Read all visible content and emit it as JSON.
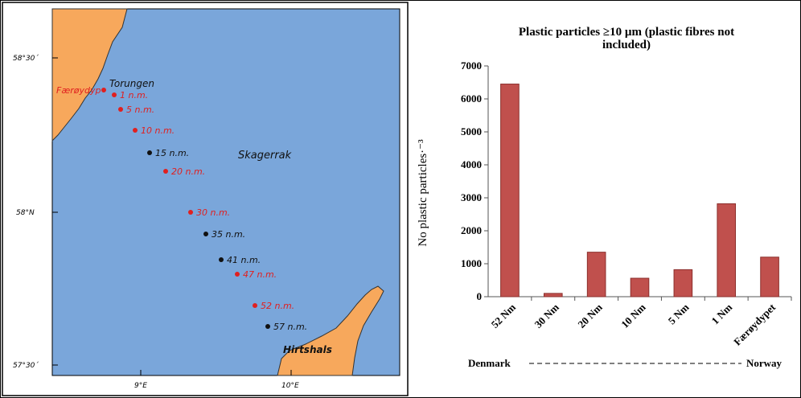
{
  "map": {
    "lat_labels": [
      "58°30´",
      "58°N",
      "57°30´"
    ],
    "lon_labels": [
      "9°E",
      "10°E"
    ],
    "place_labels": {
      "faroydyp": "Færøydyp",
      "torungen": "Torungen",
      "skagerrak": "Skagerrak",
      "hirtshals": "Hirtshals"
    },
    "stations": [
      {
        "label": "1 n.m.",
        "color": "#e02020"
      },
      {
        "label": "5 n.m.",
        "color": "#e02020"
      },
      {
        "label": "10 n.m.",
        "color": "#e02020"
      },
      {
        "label": "15 n.m.",
        "color": "#111111"
      },
      {
        "label": "20 n.m.",
        "color": "#e02020"
      },
      {
        "label": "30 n.m.",
        "color": "#e02020"
      },
      {
        "label": "35 n.m.",
        "color": "#111111"
      },
      {
        "label": "41 n.m.",
        "color": "#111111"
      },
      {
        "label": "47 n.m.",
        "color": "#e02020"
      },
      {
        "label": "52 n.m.",
        "color": "#e02020"
      },
      {
        "label": "57 n.m.",
        "color": "#111111"
      }
    ],
    "colors": {
      "sea": "#7aa6da",
      "land": "#f7a85c",
      "red_label": "#e02020"
    }
  },
  "chart_data": {
    "type": "bar",
    "title_line1": "Plastic particles ≥10 µm  (plastic fibres not",
    "title_line2": "included)",
    "ylabel": "No plastic particles·⁻³",
    "categories": [
      "52 Nm",
      "30 Nm",
      "20 Nm",
      "10 Nm",
      "5 Nm",
      "1 Nm",
      "Færøydypet"
    ],
    "values": [
      6450,
      100,
      1350,
      560,
      820,
      2820,
      1200
    ],
    "ylim": [
      0,
      7000
    ],
    "yticks": [
      0,
      1000,
      2000,
      3000,
      4000,
      5000,
      6000,
      7000
    ],
    "bar_color": "#c0504d",
    "left_label": "Denmark",
    "right_label": "Norway"
  }
}
